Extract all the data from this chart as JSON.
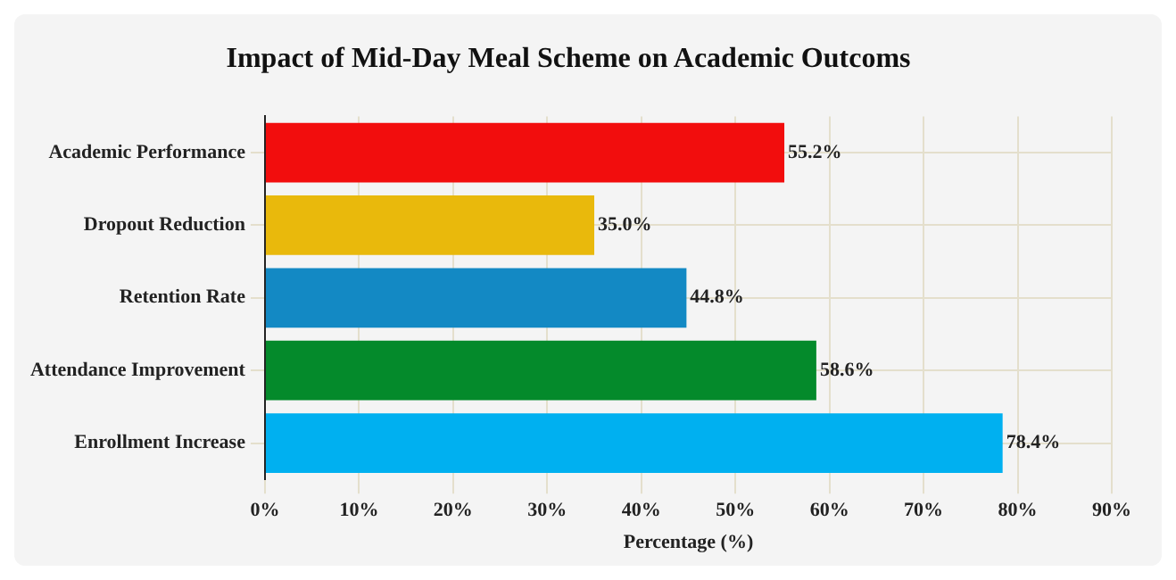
{
  "chart_data": {
    "type": "bar",
    "orientation": "horizontal",
    "title": "Impact of Mid-Day Meal Scheme on Academic Outcoms",
    "xlabel": "Percentage (%)",
    "categories": [
      "Academic Performance",
      "Dropout Reduction",
      "Retention Rate",
      "Attendance Improvement",
      "Enrollment Increase"
    ],
    "values": [
      55.2,
      35.0,
      44.8,
      58.6,
      78.4
    ],
    "colors": [
      "#f20d0d",
      "#e9b90c",
      "#1389c4",
      "#048a2b",
      "#00b0f0"
    ],
    "value_labels": [
      "55.2%",
      "35.0%",
      "44.8%",
      "58.6%",
      "78.4%"
    ],
    "xlim": [
      0,
      90
    ],
    "xticks": [
      {
        "value": 0,
        "label": "0%"
      },
      {
        "value": 10,
        "label": "10%"
      },
      {
        "value": 20,
        "label": "20%"
      },
      {
        "value": 30,
        "label": "30%"
      },
      {
        "value": 40,
        "label": "40%"
      },
      {
        "value": 50,
        "label": "50%"
      },
      {
        "value": 60,
        "label": "60%"
      },
      {
        "value": 70,
        "label": "70%"
      },
      {
        "value": 80,
        "label": "80%"
      },
      {
        "value": 90,
        "label": "90%"
      }
    ],
    "grid": true,
    "legend": false
  }
}
